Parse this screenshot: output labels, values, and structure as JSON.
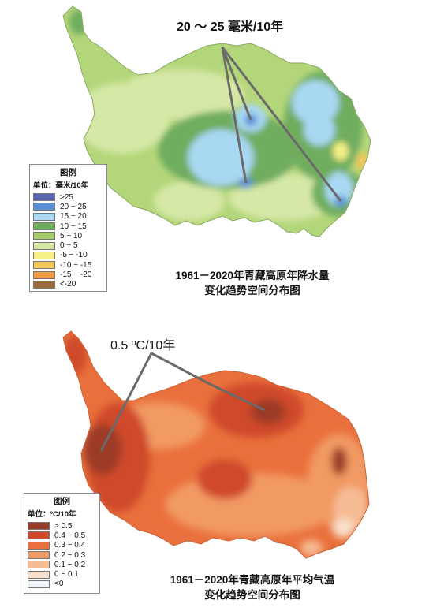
{
  "maps": [
    {
      "id": "precipitation",
      "annotation": "20 ～ 25 毫米/10年",
      "caption_line1": "1961－2020年青藏高原年降水量",
      "caption_line2": "变化趋势空间分布图",
      "legend": {
        "title": "图例",
        "unit": "单位：毫米/10年",
        "items": [
          {
            "label": ">25",
            "color": "#5a67b0"
          },
          {
            "label": "20 ~ 25",
            "color": "#5b8fd6"
          },
          {
            "label": "15 ~ 20",
            "color": "#a9d8f2"
          },
          {
            "label": "10 ~ 15",
            "color": "#6fad5e"
          },
          {
            "label": "5 ~ 10",
            "color": "#a6cc6a"
          },
          {
            "label": "0 ~ 5",
            "color": "#d5e8a6"
          },
          {
            "label": "-5 ~ -10",
            "color": "#f5ef86"
          },
          {
            "label": "-10 ~ -15",
            "color": "#f2c65b"
          },
          {
            "label": "-15 ~ -20",
            "color": "#ed9c45"
          },
          {
            "label": "<-20",
            "color": "#9c6b3d"
          }
        ]
      }
    },
    {
      "id": "temperature",
      "annotation": "0.5 ºC/10年",
      "caption_line1": "1961－2020年青藏高原年平均气温",
      "caption_line2": "变化趋势空间分布图",
      "legend": {
        "title": "图例",
        "unit": "单位：ºC/10年",
        "items": [
          {
            "label": "> 0.5",
            "color": "#9b3b25"
          },
          {
            "label": "0.4 ~ 0.5",
            "color": "#cf4a2a"
          },
          {
            "label": "0.3 ~ 0.4",
            "color": "#e9703c"
          },
          {
            "label": "0.2 ~ 0.3",
            "color": "#f29a63"
          },
          {
            "label": "0.1 ~ 0.2",
            "color": "#f6bc94"
          },
          {
            "label": "0 ~ 0.1",
            "color": "#f9e0cc"
          },
          {
            "label": "<0",
            "color": "#eef4fb"
          }
        ]
      }
    }
  ]
}
